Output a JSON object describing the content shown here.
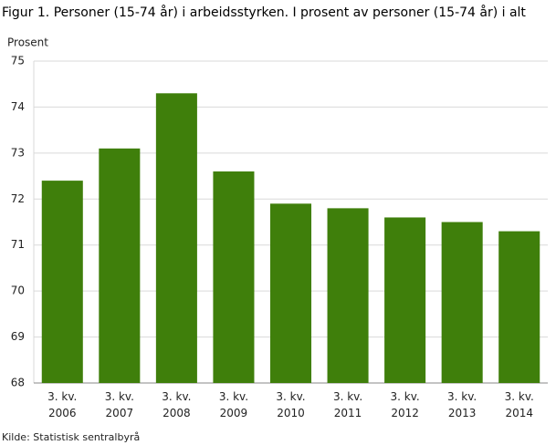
{
  "chart_data": {
    "type": "bar",
    "title": "Figur 1. Personer (15-74 år) i arbeidsstyrken. I prosent av personer (15-74 år) i alt",
    "y_label": "Prosent",
    "source": "Kilde: Statistisk sentralbyrå",
    "categories": [
      "3. kv. 2006",
      "3. kv. 2007",
      "3. kv. 2008",
      "3. kv. 2009",
      "3. kv. 2010",
      "3. kv. 2011",
      "3. kv. 2012",
      "3. kv. 2013",
      "3. kv. 2014"
    ],
    "values": [
      72.4,
      73.1,
      74.3,
      72.6,
      71.9,
      71.8,
      71.6,
      71.5,
      71.3
    ],
    "color": "#3f7f0b",
    "ylim": [
      68,
      75
    ],
    "yticks": [
      68,
      69,
      70,
      71,
      72,
      73,
      74,
      75
    ],
    "grid": true
  }
}
